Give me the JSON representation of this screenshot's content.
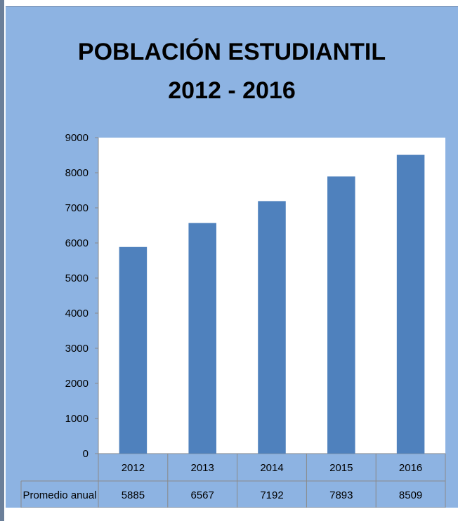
{
  "chart_data": {
    "type": "bar",
    "title": "POBLACIÓN ESTUDIANTIL",
    "subtitle": "2012 - 2016",
    "categories": [
      "2012",
      "2013",
      "2014",
      "2015",
      "2016"
    ],
    "series": [
      {
        "name": "Promedio anual",
        "values": [
          5885,
          6567,
          7192,
          7893,
          8509
        ]
      }
    ],
    "ylim": [
      0,
      9000
    ],
    "yticks": [
      0,
      1000,
      2000,
      3000,
      4000,
      5000,
      6000,
      7000,
      8000,
      9000
    ],
    "grid": false,
    "data_table": true,
    "colors": {
      "bar": "#4f81bd",
      "plot_background": "#ffffff",
      "chart_background": "#8db3e2"
    }
  }
}
